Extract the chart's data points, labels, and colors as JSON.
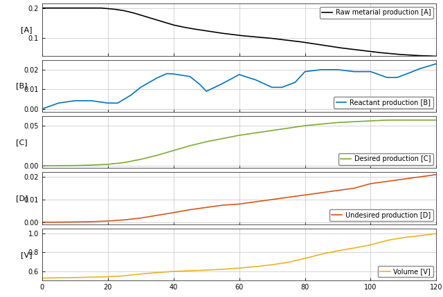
{
  "xlim": [
    0,
    120
  ],
  "xticks": [
    0,
    20,
    40,
    60,
    80,
    100,
    120
  ],
  "panel_A": {
    "label": "[A]",
    "legend": "Raw metarial production [A]",
    "color": "#000000",
    "ylim": [
      0.04,
      0.215
    ],
    "yticks": [
      0.1,
      0.2
    ],
    "x": [
      0,
      3,
      6,
      9,
      12,
      15,
      18,
      20,
      22,
      25,
      28,
      31,
      34,
      37,
      40,
      43,
      46,
      49,
      52,
      55,
      58,
      61,
      64,
      67,
      70,
      73,
      76,
      79,
      82,
      85,
      88,
      91,
      94,
      97,
      100,
      103,
      106,
      109,
      112,
      115,
      118,
      120
    ],
    "y": [
      0.2,
      0.2,
      0.2,
      0.2,
      0.2,
      0.2,
      0.2,
      0.198,
      0.196,
      0.191,
      0.183,
      0.173,
      0.163,
      0.153,
      0.143,
      0.136,
      0.13,
      0.125,
      0.12,
      0.115,
      0.111,
      0.107,
      0.104,
      0.101,
      0.098,
      0.094,
      0.09,
      0.086,
      0.081,
      0.076,
      0.071,
      0.066,
      0.062,
      0.058,
      0.054,
      0.05,
      0.047,
      0.044,
      0.042,
      0.04,
      0.039,
      0.038
    ]
  },
  "panel_B": {
    "label": "[B]",
    "legend": "Reactant production [B]",
    "color": "#0072BD",
    "ylim": [
      -0.0015,
      0.025
    ],
    "yticks": [
      0,
      0.01,
      0.02
    ],
    "x": [
      0,
      5,
      10,
      15,
      20,
      23,
      27,
      30,
      35,
      38,
      40,
      45,
      48,
      50,
      55,
      60,
      65,
      70,
      73,
      77,
      80,
      85,
      90,
      95,
      100,
      105,
      108,
      112,
      115,
      120
    ],
    "y": [
      0.0,
      0.003,
      0.0042,
      0.0042,
      0.003,
      0.003,
      0.007,
      0.011,
      0.0158,
      0.018,
      0.0178,
      0.0165,
      0.0125,
      0.009,
      0.013,
      0.0175,
      0.0148,
      0.011,
      0.011,
      0.0135,
      0.019,
      0.02,
      0.02,
      0.019,
      0.019,
      0.016,
      0.016,
      0.0185,
      0.0205,
      0.023
    ]
  },
  "panel_C": {
    "label": "[C]",
    "legend": "Desired production [C]",
    "color": "#77AC30",
    "ylim": [
      -0.003,
      0.062
    ],
    "yticks": [
      0,
      0.05
    ],
    "x": [
      0,
      5,
      10,
      15,
      20,
      25,
      30,
      35,
      40,
      45,
      50,
      55,
      60,
      65,
      70,
      75,
      80,
      85,
      90,
      95,
      100,
      105,
      110,
      115,
      120
    ],
    "y": [
      0.0,
      0.0001,
      0.0003,
      0.0008,
      0.0018,
      0.004,
      0.008,
      0.013,
      0.019,
      0.025,
      0.03,
      0.034,
      0.038,
      0.041,
      0.044,
      0.047,
      0.05,
      0.052,
      0.054,
      0.055,
      0.056,
      0.057,
      0.057,
      0.057,
      0.057
    ]
  },
  "panel_D": {
    "label": "[D]",
    "legend": "Undesired production [D]",
    "color": "#D95319",
    "ylim": [
      -0.001,
      0.022
    ],
    "yticks": [
      0,
      0.01,
      0.02
    ],
    "x": [
      0,
      5,
      10,
      15,
      20,
      25,
      30,
      35,
      40,
      45,
      50,
      55,
      60,
      65,
      70,
      75,
      80,
      85,
      90,
      95,
      100,
      105,
      110,
      115,
      120
    ],
    "y": [
      0.0,
      0.0,
      0.0001,
      0.0002,
      0.0005,
      0.001,
      0.0018,
      0.003,
      0.0042,
      0.0055,
      0.0065,
      0.0075,
      0.008,
      0.009,
      0.01,
      0.011,
      0.012,
      0.013,
      0.014,
      0.015,
      0.017,
      0.018,
      0.019,
      0.02,
      0.021
    ]
  },
  "panel_V": {
    "label": "[V]",
    "legend": "Volume [V]",
    "color": "#EDB120",
    "ylim": [
      0.5,
      1.05
    ],
    "yticks": [
      0.6,
      0.8,
      1.0
    ],
    "x": [
      0,
      5,
      10,
      15,
      20,
      22,
      25,
      30,
      35,
      40,
      45,
      50,
      55,
      60,
      65,
      70,
      75,
      80,
      85,
      90,
      95,
      100,
      105,
      110,
      115,
      120
    ],
    "y": [
      0.528,
      0.53,
      0.533,
      0.537,
      0.542,
      0.545,
      0.552,
      0.57,
      0.585,
      0.598,
      0.605,
      0.612,
      0.62,
      0.633,
      0.648,
      0.668,
      0.695,
      0.735,
      0.78,
      0.815,
      0.845,
      0.878,
      0.925,
      0.955,
      0.975,
      0.998
    ]
  },
  "grid_color": "#cccccc",
  "bg_color": "#ffffff",
  "linewidth": 1.2,
  "legend_fontsize": 7.0,
  "tick_fontsize": 7,
  "ylabel_fontsize": 8
}
